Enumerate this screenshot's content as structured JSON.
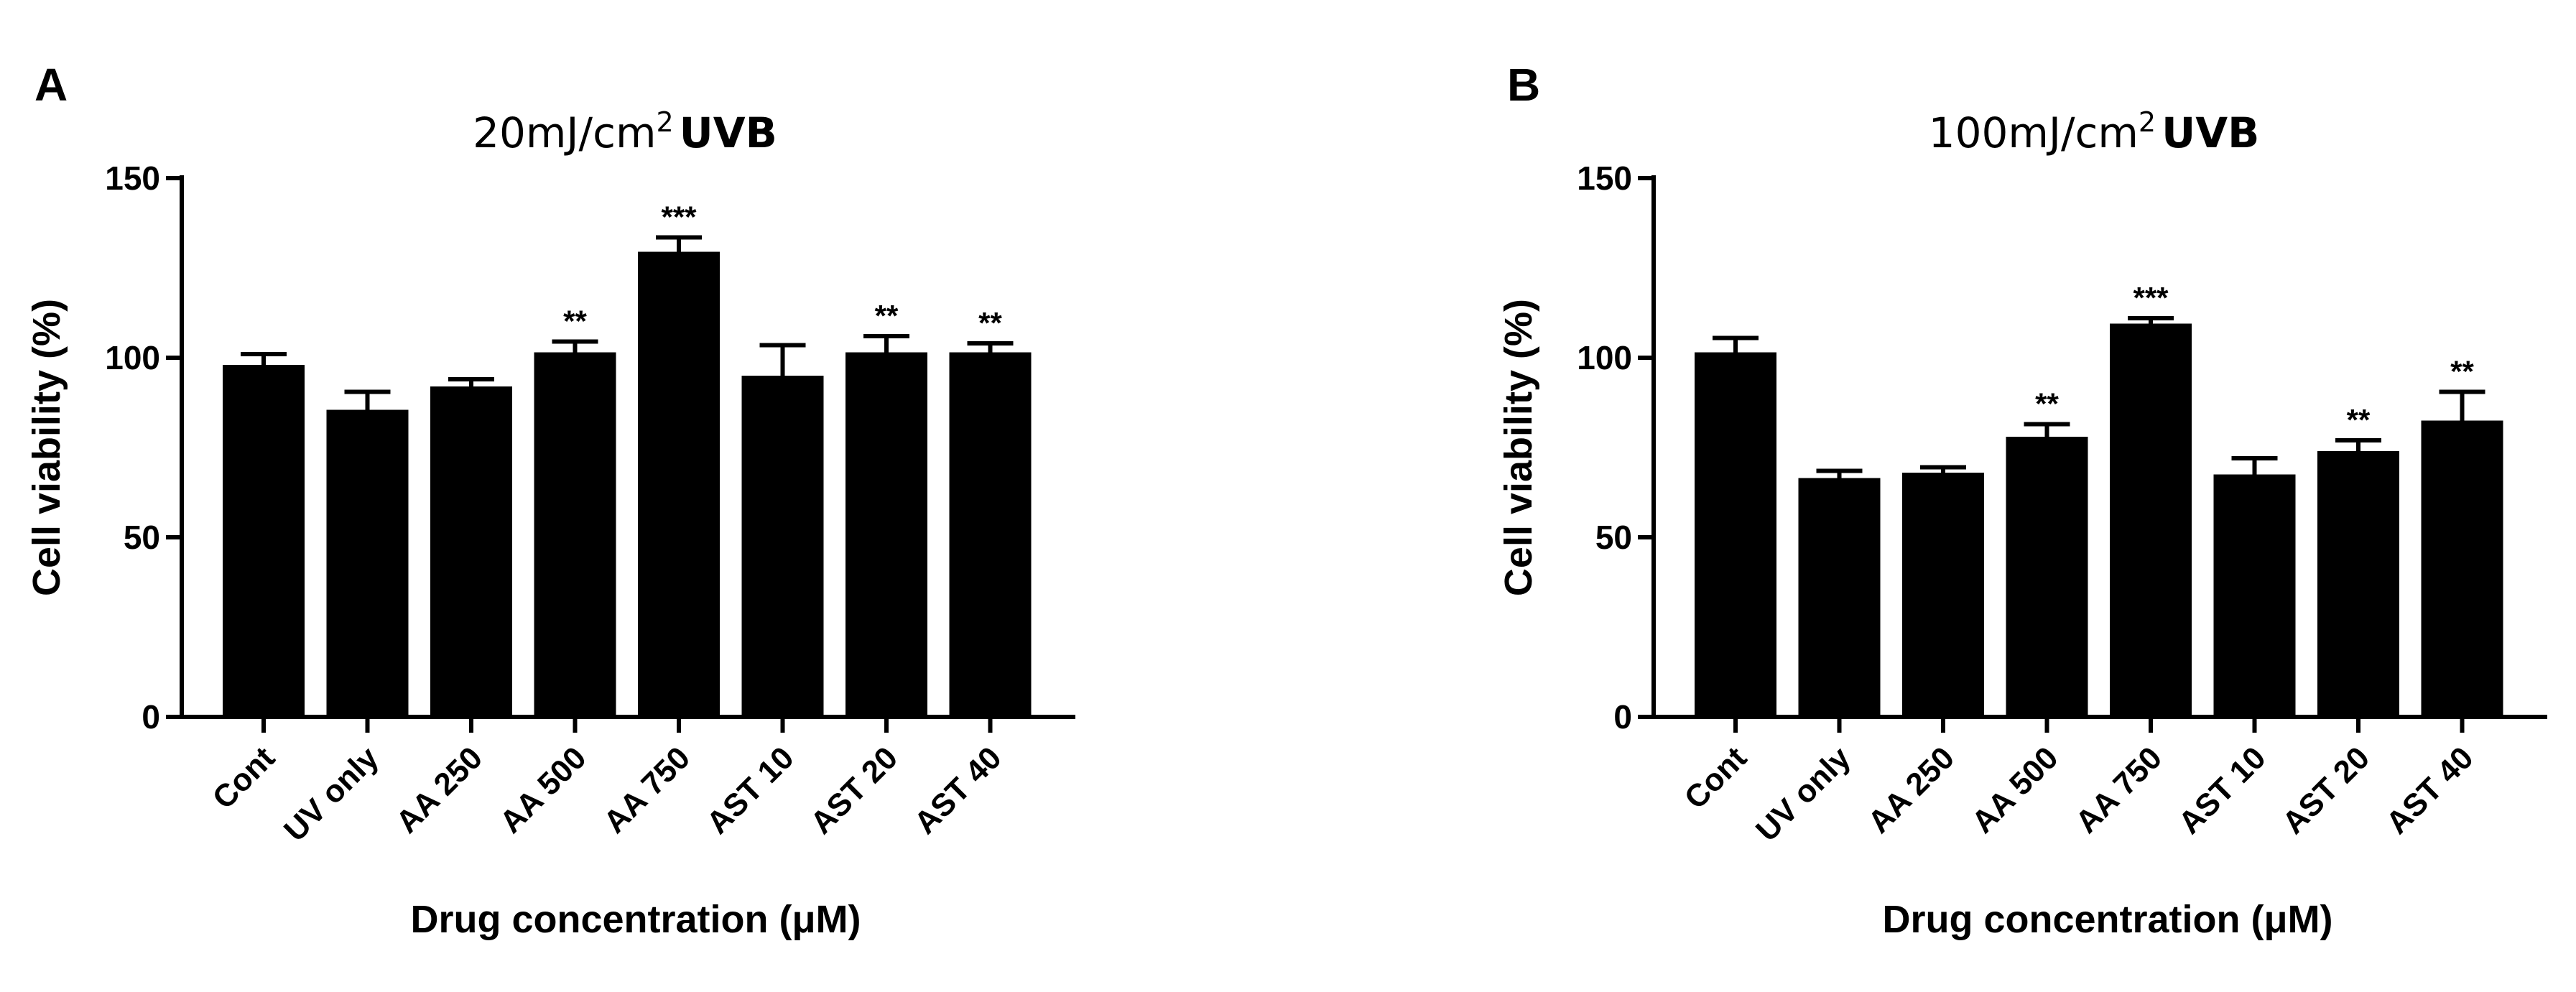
{
  "chart_data": [
    {
      "panel": "A",
      "type": "bar",
      "title_prefix": "20mJ/cm",
      "title_superscript": "2",
      "title_suffix": "UVB",
      "xlabel": "Drug concentration (μM)",
      "ylabel": "Cell viability (%)",
      "ylim": [
        0,
        150
      ],
      "yticks": [
        "0",
        "50",
        "100",
        "150"
      ],
      "categories": [
        "Cont",
        "UV only",
        "AA 250",
        "AA 500",
        "AA 750",
        "AST 10",
        "AST 20",
        "AST 40"
      ],
      "values": [
        98,
        85.5,
        92,
        101.5,
        129.5,
        95,
        101.5,
        101.5
      ],
      "errors": [
        3,
        5,
        2,
        3,
        4,
        8.5,
        4.5,
        2.5
      ],
      "significance": [
        "",
        "",
        "",
        "**",
        "***",
        "",
        "**",
        "**"
      ],
      "grid": false,
      "bar_color": "#000000"
    },
    {
      "panel": "B",
      "type": "bar",
      "title_prefix": "100mJ/cm",
      "title_superscript": "2",
      "title_suffix": "UVB",
      "xlabel": "Drug concentration (μM)",
      "ylabel": "Cell viability (%)",
      "ylim": [
        0,
        150
      ],
      "yticks": [
        "0",
        "50",
        "100",
        "150"
      ],
      "categories": [
        "Cont",
        "UV only",
        "AA 250",
        "AA 500",
        "AA 750",
        "AST 10",
        "AST 20",
        "AST 40"
      ],
      "values": [
        101.5,
        66.5,
        68,
        78,
        109.5,
        67.5,
        74,
        82.5
      ],
      "errors": [
        4,
        2,
        1.5,
        3.5,
        1.5,
        4.5,
        3,
        8
      ],
      "significance": [
        "",
        "",
        "",
        "**",
        "***",
        "",
        "**",
        "**"
      ],
      "grid": false,
      "bar_color": "#000000"
    }
  ]
}
